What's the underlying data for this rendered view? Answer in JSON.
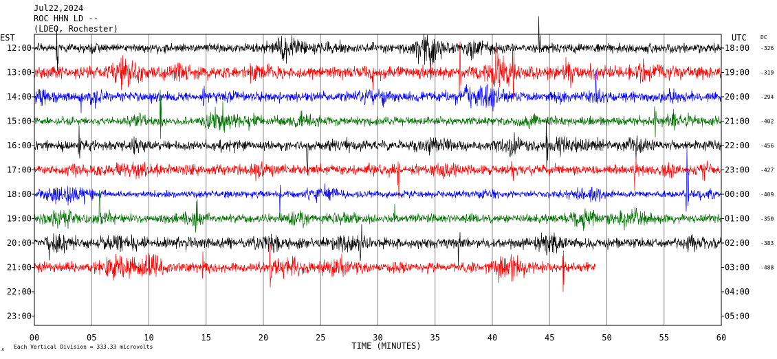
{
  "header": {
    "date": "Jul22,2024",
    "station": "ROC HHN LD --",
    "network": "(LDEO, Rochester)"
  },
  "left_axis_title": "EST",
  "right_axis_title": "UTC",
  "dc_title": "DC",
  "footer": {
    "scale_note": "Each Vertical Division =  333.33 microvolts",
    "scale_glyph": "∧"
  },
  "chart_data": {
    "type": "line",
    "title": "ROC HHN LD --",
    "xlabel": "TIME (MINUTES)",
    "ylabel": "",
    "xlim": [
      0,
      60
    ],
    "x_ticks": [
      "00",
      "05",
      "10",
      "15",
      "20",
      "25",
      "30",
      "35",
      "40",
      "45",
      "50",
      "55",
      "60"
    ],
    "grid": true,
    "est_labels": [
      "12:00",
      "13:00",
      "14:00",
      "15:00",
      "16:00",
      "17:00",
      "18:00",
      "19:00",
      "20:00",
      "21:00",
      "22:00",
      "23:00"
    ],
    "utc_labels": [
      "18:00",
      "19:00",
      "20:00",
      "21:00",
      "22:00",
      "23:00",
      "00:00",
      "01:00",
      "02:00",
      "03:00",
      "04:00",
      "05:00"
    ],
    "dc_offsets": [
      "-326",
      "-319",
      "-294",
      "-402",
      "-456",
      "-427",
      "-409",
      "-350",
      "-383",
      "-488"
    ],
    "trace_colors": [
      "#000000",
      "#ff0000",
      "#0000ff",
      "#007000"
    ],
    "series": [
      {
        "hour_est": "12:00",
        "color": "#000000",
        "end_minute": 60,
        "amplitude": 0.9
      },
      {
        "hour_est": "13:00",
        "color": "#ff0000",
        "end_minute": 60,
        "amplitude": 1.0
      },
      {
        "hour_est": "14:00",
        "color": "#0000ff",
        "end_minute": 60,
        "amplitude": 1.0
      },
      {
        "hour_est": "15:00",
        "color": "#007000",
        "end_minute": 60,
        "amplitude": 1.1
      },
      {
        "hour_est": "16:00",
        "color": "#000000",
        "end_minute": 60,
        "amplitude": 0.8
      },
      {
        "hour_est": "17:00",
        "color": "#ff0000",
        "end_minute": 60,
        "amplitude": 0.8
      },
      {
        "hour_est": "18:00",
        "color": "#0000ff",
        "end_minute": 60,
        "amplitude": 0.8
      },
      {
        "hour_est": "19:00",
        "color": "#007000",
        "end_minute": 60,
        "amplitude": 1.0
      },
      {
        "hour_est": "20:00",
        "color": "#000000",
        "end_minute": 60,
        "amplitude": 0.8
      },
      {
        "hour_est": "21:00",
        "color": "#ff0000",
        "end_minute": 49,
        "amplitude": 0.9
      }
    ]
  }
}
